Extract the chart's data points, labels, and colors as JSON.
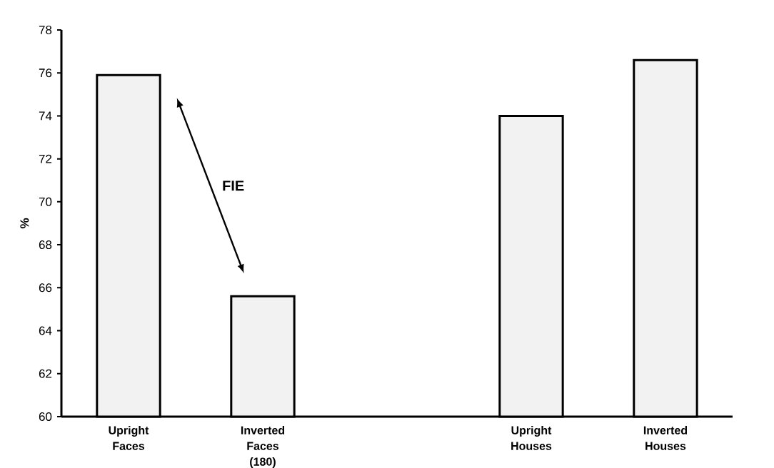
{
  "chart_data": {
    "type": "bar",
    "ylabel": "%",
    "categories": [
      "Upright Faces",
      "Inverted Faces (180)",
      null,
      "Upright Houses",
      "Inverted Houses"
    ],
    "values": [
      75.9,
      65.6,
      null,
      74.0,
      76.6
    ],
    "color": "#f2f2f2",
    "ylim": [
      60,
      78
    ],
    "yticks": [
      60,
      62,
      64,
      66,
      68,
      70,
      72,
      74,
      76,
      78
    ],
    "annotations": [
      "FIE"
    ]
  }
}
